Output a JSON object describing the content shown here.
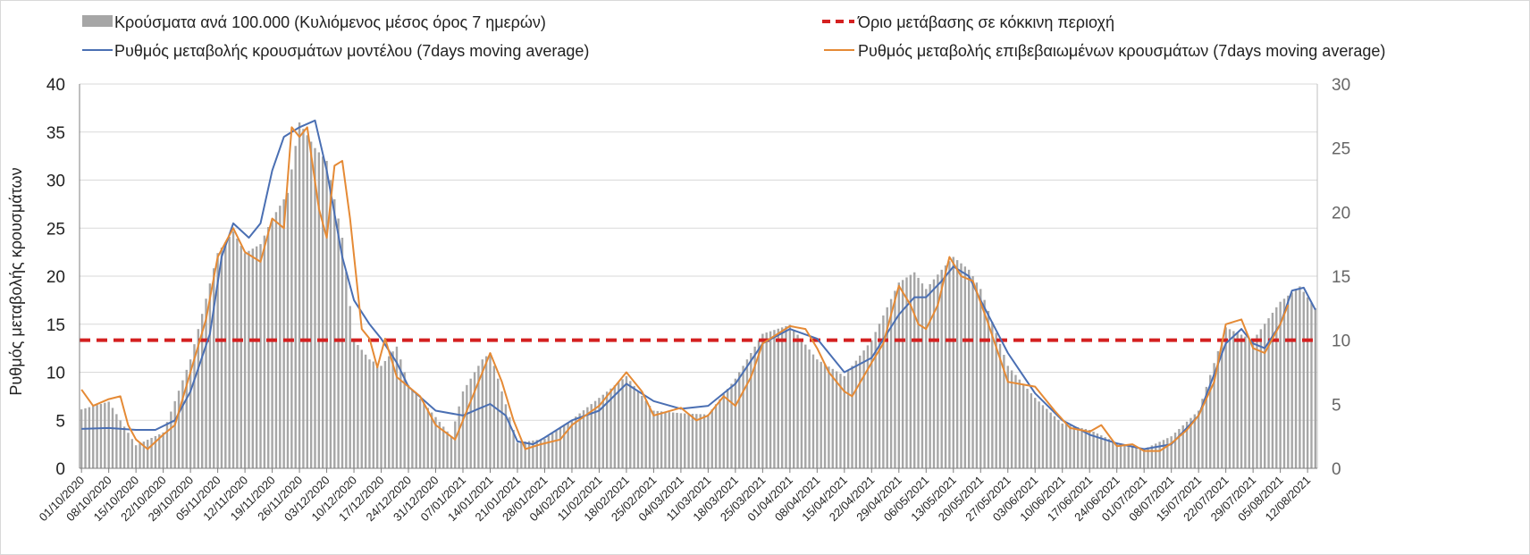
{
  "chart_data": {
    "type": "bar",
    "title": "",
    "xlabel": "",
    "ylabel": "Ρυθμός μεταβολής κρουσμάτων",
    "y2label": "",
    "ylim": [
      0,
      40
    ],
    "y2lim": [
      0,
      30
    ],
    "y_ticks": [
      0,
      5,
      10,
      15,
      20,
      25,
      30,
      35,
      40
    ],
    "y2_ticks": [
      0,
      5,
      10,
      15,
      20,
      25,
      30
    ],
    "grid": true,
    "legend_position": "top",
    "legend": {
      "bars_label": "Κρούσματα ανά 100.000 (Κυλιόμενος μέσος όρος 7 ημερών)",
      "threshold_label": "Όριο μετάβασης σε κόκκινη περιοχή",
      "model_label": "Ρυθμός μεταβολής κρουσμάτων μοντέλου (7days moving average)",
      "confirmed_label": "Ρυθμός μεταβολής επιβεβαιωμένων κρουσμάτων (7days moving average)"
    },
    "x_start": "2020-10-01",
    "x_end": "2021-08-14",
    "x_tick_labels": [
      "01/10/2020",
      "08/10/2020",
      "15/10/2020",
      "22/10/2020",
      "29/10/2020",
      "05/11/2020",
      "12/11/2020",
      "19/11/2020",
      "26/11/2020",
      "03/12/2020",
      "10/12/2020",
      "17/12/2020",
      "24/12/2020",
      "31/12/2020",
      "07/01/2021",
      "14/01/2021",
      "21/01/2021",
      "28/01/2021",
      "04/02/2021",
      "11/02/2021",
      "18/02/2021",
      "25/02/2021",
      "04/03/2021",
      "11/03/2021",
      "18/03/2021",
      "25/03/2021",
      "01/04/2021",
      "08/04/2021",
      "15/04/2021",
      "22/04/2021",
      "29/04/2021",
      "06/05/2021",
      "13/05/2021",
      "20/05/2021",
      "27/05/2021",
      "03/06/2021",
      "10/06/2021",
      "17/06/2021",
      "24/06/2021",
      "01/07/2021",
      "08/07/2021",
      "15/07/2021",
      "22/07/2021",
      "29/07/2021",
      "05/08/2021",
      "12/08/2021"
    ],
    "threshold": {
      "name": "Όριο μετάβασης σε κόκκινη περιοχή",
      "axis": "y2",
      "value": 10,
      "color": "#d42020"
    },
    "series": [
      {
        "name": "Κρούσματα ανά 100.000 (Κυλιόμενος μέσος όρος 7 ημερών)",
        "type": "bar",
        "axis": "y2",
        "color": "#a6a6a6",
        "points": [
          [
            "2020-10-01",
            4.6
          ],
          [
            "2020-10-08",
            5.2
          ],
          [
            "2020-10-15",
            1.8
          ],
          [
            "2020-10-22",
            2.8
          ],
          [
            "2020-10-29",
            8.5
          ],
          [
            "2020-11-05",
            16.8
          ],
          [
            "2020-11-09",
            18.5
          ],
          [
            "2020-11-12",
            16.8
          ],
          [
            "2020-11-16",
            17.5
          ],
          [
            "2020-11-19",
            19.5
          ],
          [
            "2020-11-23",
            21.5
          ],
          [
            "2020-11-26",
            27.0
          ],
          [
            "2020-11-30",
            25.0
          ],
          [
            "2020-12-03",
            24.0
          ],
          [
            "2020-12-07",
            18.0
          ],
          [
            "2020-12-10",
            10.0
          ],
          [
            "2020-12-14",
            8.5
          ],
          [
            "2020-12-17",
            8.0
          ],
          [
            "2020-12-21",
            9.5
          ],
          [
            "2020-12-24",
            6.5
          ],
          [
            "2020-12-31",
            4.0
          ],
          [
            "2021-01-04",
            2.5
          ],
          [
            "2021-01-07",
            6.0
          ],
          [
            "2021-01-12",
            8.5
          ],
          [
            "2021-01-14",
            9.0
          ],
          [
            "2021-01-21",
            2.0
          ],
          [
            "2021-01-28",
            2.3
          ],
          [
            "2021-02-04",
            3.8
          ],
          [
            "2021-02-11",
            5.5
          ],
          [
            "2021-02-18",
            7.2
          ],
          [
            "2021-02-25",
            4.5
          ],
          [
            "2021-03-04",
            4.3
          ],
          [
            "2021-03-11",
            4.2
          ],
          [
            "2021-03-18",
            7.0
          ],
          [
            "2021-03-25",
            10.5
          ],
          [
            "2021-04-01",
            11.2
          ],
          [
            "2021-04-08",
            8.5
          ],
          [
            "2021-04-15",
            7.2
          ],
          [
            "2021-04-22",
            10.0
          ],
          [
            "2021-04-29",
            14.5
          ],
          [
            "2021-05-03",
            15.3
          ],
          [
            "2021-05-06",
            14.0
          ],
          [
            "2021-05-10",
            15.5
          ],
          [
            "2021-05-13",
            16.5
          ],
          [
            "2021-05-17",
            15.5
          ],
          [
            "2021-05-20",
            14.0
          ],
          [
            "2021-05-27",
            8.0
          ],
          [
            "2021-06-03",
            5.5
          ],
          [
            "2021-06-10",
            3.5
          ],
          [
            "2021-06-17",
            3.0
          ],
          [
            "2021-06-24",
            2.0
          ],
          [
            "2021-07-01",
            1.5
          ],
          [
            "2021-07-08",
            2.5
          ],
          [
            "2021-07-15",
            4.5
          ],
          [
            "2021-07-22",
            11.0
          ],
          [
            "2021-07-29",
            10.0
          ],
          [
            "2021-08-05",
            13.0
          ],
          [
            "2021-08-10",
            14.2
          ],
          [
            "2021-08-14",
            12.5
          ]
        ]
      },
      {
        "name": "Ρυθμός μεταβολής κρουσμάτων μοντέλου (7days moving average)",
        "type": "line",
        "axis": "y",
        "color": "#4a6fb3",
        "points": [
          [
            "2020-10-01",
            4.1
          ],
          [
            "2020-10-08",
            4.2
          ],
          [
            "2020-10-15",
            4.0
          ],
          [
            "2020-10-20",
            4.0
          ],
          [
            "2020-10-25",
            5.0
          ],
          [
            "2020-10-29",
            8.0
          ],
          [
            "2020-11-03",
            14.0
          ],
          [
            "2020-11-06",
            22.0
          ],
          [
            "2020-11-09",
            25.5
          ],
          [
            "2020-11-13",
            24.0
          ],
          [
            "2020-11-16",
            25.5
          ],
          [
            "2020-11-19",
            31.0
          ],
          [
            "2020-11-22",
            34.5
          ],
          [
            "2020-11-26",
            35.5
          ],
          [
            "2020-11-30",
            36.2
          ],
          [
            "2020-12-03",
            31.0
          ],
          [
            "2020-12-07",
            22.0
          ],
          [
            "2020-12-10",
            17.5
          ],
          [
            "2020-12-14",
            15.0
          ],
          [
            "2020-12-17",
            13.5
          ],
          [
            "2020-12-21",
            11.0
          ],
          [
            "2020-12-24",
            8.5
          ],
          [
            "2020-12-31",
            6.0
          ],
          [
            "2021-01-07",
            5.5
          ],
          [
            "2021-01-11",
            6.2
          ],
          [
            "2021-01-14",
            6.7
          ],
          [
            "2021-01-18",
            5.5
          ],
          [
            "2021-01-21",
            2.8
          ],
          [
            "2021-01-25",
            2.5
          ],
          [
            "2021-01-28",
            3.2
          ],
          [
            "2021-02-04",
            5.0
          ],
          [
            "2021-02-11",
            6.0
          ],
          [
            "2021-02-18",
            8.8
          ],
          [
            "2021-02-25",
            7.0
          ],
          [
            "2021-03-04",
            6.2
          ],
          [
            "2021-03-11",
            6.5
          ],
          [
            "2021-03-18",
            8.8
          ],
          [
            "2021-03-25",
            13.0
          ],
          [
            "2021-04-01",
            14.5
          ],
          [
            "2021-04-08",
            13.5
          ],
          [
            "2021-04-15",
            10.0
          ],
          [
            "2021-04-22",
            11.5
          ],
          [
            "2021-04-29",
            16.0
          ],
          [
            "2021-05-03",
            17.8
          ],
          [
            "2021-05-06",
            17.8
          ],
          [
            "2021-05-10",
            19.5
          ],
          [
            "2021-05-13",
            21.0
          ],
          [
            "2021-05-17",
            20.0
          ],
          [
            "2021-05-20",
            17.5
          ],
          [
            "2021-05-27",
            12.0
          ],
          [
            "2021-06-03",
            7.8
          ],
          [
            "2021-06-10",
            5.0
          ],
          [
            "2021-06-17",
            3.5
          ],
          [
            "2021-06-24",
            2.6
          ],
          [
            "2021-07-01",
            2.0
          ],
          [
            "2021-07-08",
            2.5
          ],
          [
            "2021-07-15",
            5.5
          ],
          [
            "2021-07-22",
            13.0
          ],
          [
            "2021-07-26",
            14.5
          ],
          [
            "2021-07-29",
            13.0
          ],
          [
            "2021-08-01",
            12.5
          ],
          [
            "2021-08-05",
            15.0
          ],
          [
            "2021-08-08",
            18.5
          ],
          [
            "2021-08-11",
            18.8
          ],
          [
            "2021-08-14",
            16.5
          ]
        ]
      },
      {
        "name": "Ρυθμός μεταβολής επιβεβαιωμένων κρουσμάτων (7days moving average)",
        "type": "line",
        "axis": "y",
        "color": "#e58a35",
        "points": [
          [
            "2020-10-01",
            8.2
          ],
          [
            "2020-10-04",
            6.5
          ],
          [
            "2020-10-08",
            7.2
          ],
          [
            "2020-10-11",
            7.5
          ],
          [
            "2020-10-13",
            4.5
          ],
          [
            "2020-10-15",
            3.0
          ],
          [
            "2020-10-18",
            2.0
          ],
          [
            "2020-10-22",
            3.5
          ],
          [
            "2020-10-25",
            4.5
          ],
          [
            "2020-10-29",
            10.0
          ],
          [
            "2020-11-02",
            15.5
          ],
          [
            "2020-11-05",
            22.0
          ],
          [
            "2020-11-09",
            25.0
          ],
          [
            "2020-11-12",
            22.5
          ],
          [
            "2020-11-16",
            21.5
          ],
          [
            "2020-11-19",
            26.0
          ],
          [
            "2020-11-22",
            25.0
          ],
          [
            "2020-11-24",
            35.5
          ],
          [
            "2020-11-26",
            34.5
          ],
          [
            "2020-11-28",
            35.5
          ],
          [
            "2020-12-01",
            27.0
          ],
          [
            "2020-12-03",
            24.0
          ],
          [
            "2020-12-05",
            31.5
          ],
          [
            "2020-12-07",
            32.0
          ],
          [
            "2020-12-09",
            26.0
          ],
          [
            "2020-12-12",
            14.5
          ],
          [
            "2020-12-14",
            13.5
          ],
          [
            "2020-12-16",
            10.5
          ],
          [
            "2020-12-18",
            13.5
          ],
          [
            "2020-12-21",
            9.5
          ],
          [
            "2020-12-24",
            8.5
          ],
          [
            "2020-12-27",
            7.5
          ],
          [
            "2020-12-31",
            4.5
          ],
          [
            "2021-01-05",
            3.0
          ],
          [
            "2021-01-08",
            6.0
          ],
          [
            "2021-01-12",
            10.0
          ],
          [
            "2021-01-14",
            12.0
          ],
          [
            "2021-01-17",
            9.0
          ],
          [
            "2021-01-20",
            5.0
          ],
          [
            "2021-01-23",
            2.0
          ],
          [
            "2021-01-27",
            2.5
          ],
          [
            "2021-02-01",
            3.0
          ],
          [
            "2021-02-04",
            4.5
          ],
          [
            "2021-02-11",
            6.5
          ],
          [
            "2021-02-18",
            10.0
          ],
          [
            "2021-02-22",
            8.0
          ],
          [
            "2021-02-25",
            5.5
          ],
          [
            "2021-03-04",
            6.3
          ],
          [
            "2021-03-08",
            5.0
          ],
          [
            "2021-03-11",
            5.5
          ],
          [
            "2021-03-15",
            7.5
          ],
          [
            "2021-03-18",
            6.5
          ],
          [
            "2021-03-22",
            9.5
          ],
          [
            "2021-03-25",
            13.0
          ],
          [
            "2021-04-01",
            14.8
          ],
          [
            "2021-04-05",
            14.5
          ],
          [
            "2021-04-08",
            12.5
          ],
          [
            "2021-04-11",
            10.0
          ],
          [
            "2021-04-15",
            8.0
          ],
          [
            "2021-04-17",
            7.5
          ],
          [
            "2021-04-22",
            11.0
          ],
          [
            "2021-04-25",
            13.0
          ],
          [
            "2021-04-29",
            19.0
          ],
          [
            "2021-05-02",
            17.0
          ],
          [
            "2021-05-04",
            15.0
          ],
          [
            "2021-05-06",
            14.5
          ],
          [
            "2021-05-09",
            17.0
          ],
          [
            "2021-05-12",
            22.0
          ],
          [
            "2021-05-15",
            20.0
          ],
          [
            "2021-05-18",
            19.5
          ],
          [
            "2021-05-22",
            15.0
          ],
          [
            "2021-05-27",
            9.0
          ],
          [
            "2021-06-03",
            8.5
          ],
          [
            "2021-06-08",
            6.0
          ],
          [
            "2021-06-12",
            4.2
          ],
          [
            "2021-06-17",
            3.8
          ],
          [
            "2021-06-20",
            4.5
          ],
          [
            "2021-06-24",
            2.3
          ],
          [
            "2021-06-28",
            2.5
          ],
          [
            "2021-07-01",
            1.8
          ],
          [
            "2021-07-05",
            1.8
          ],
          [
            "2021-07-08",
            2.6
          ],
          [
            "2021-07-12",
            4.0
          ],
          [
            "2021-07-15",
            5.5
          ],
          [
            "2021-07-19",
            9.0
          ],
          [
            "2021-07-22",
            15.0
          ],
          [
            "2021-07-26",
            15.5
          ],
          [
            "2021-07-29",
            12.5
          ],
          [
            "2021-08-01",
            12.0
          ],
          [
            "2021-08-05",
            15.0
          ],
          [
            "2021-08-07",
            17.0
          ]
        ]
      }
    ]
  }
}
